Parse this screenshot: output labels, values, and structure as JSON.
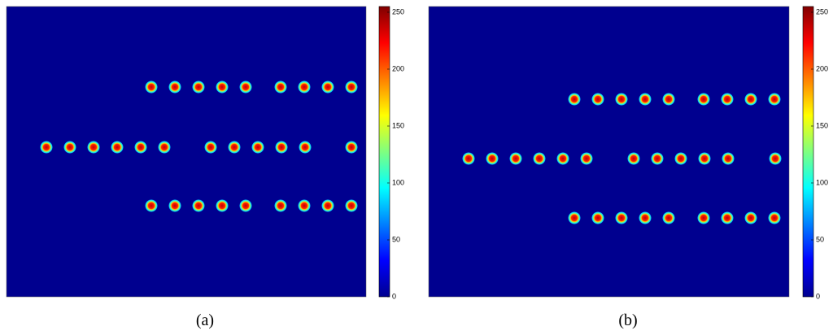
{
  "panels": [
    {
      "label": "(a)",
      "colorbar": {
        "range": [
          0,
          255
        ],
        "ticks": [
          0,
          50,
          100,
          150,
          200,
          250
        ]
      }
    },
    {
      "label": "(b)",
      "colorbar": {
        "range": [
          0,
          255
        ],
        "ticks": [
          0,
          50,
          100,
          150,
          200,
          250
        ]
      }
    }
  ]
}
